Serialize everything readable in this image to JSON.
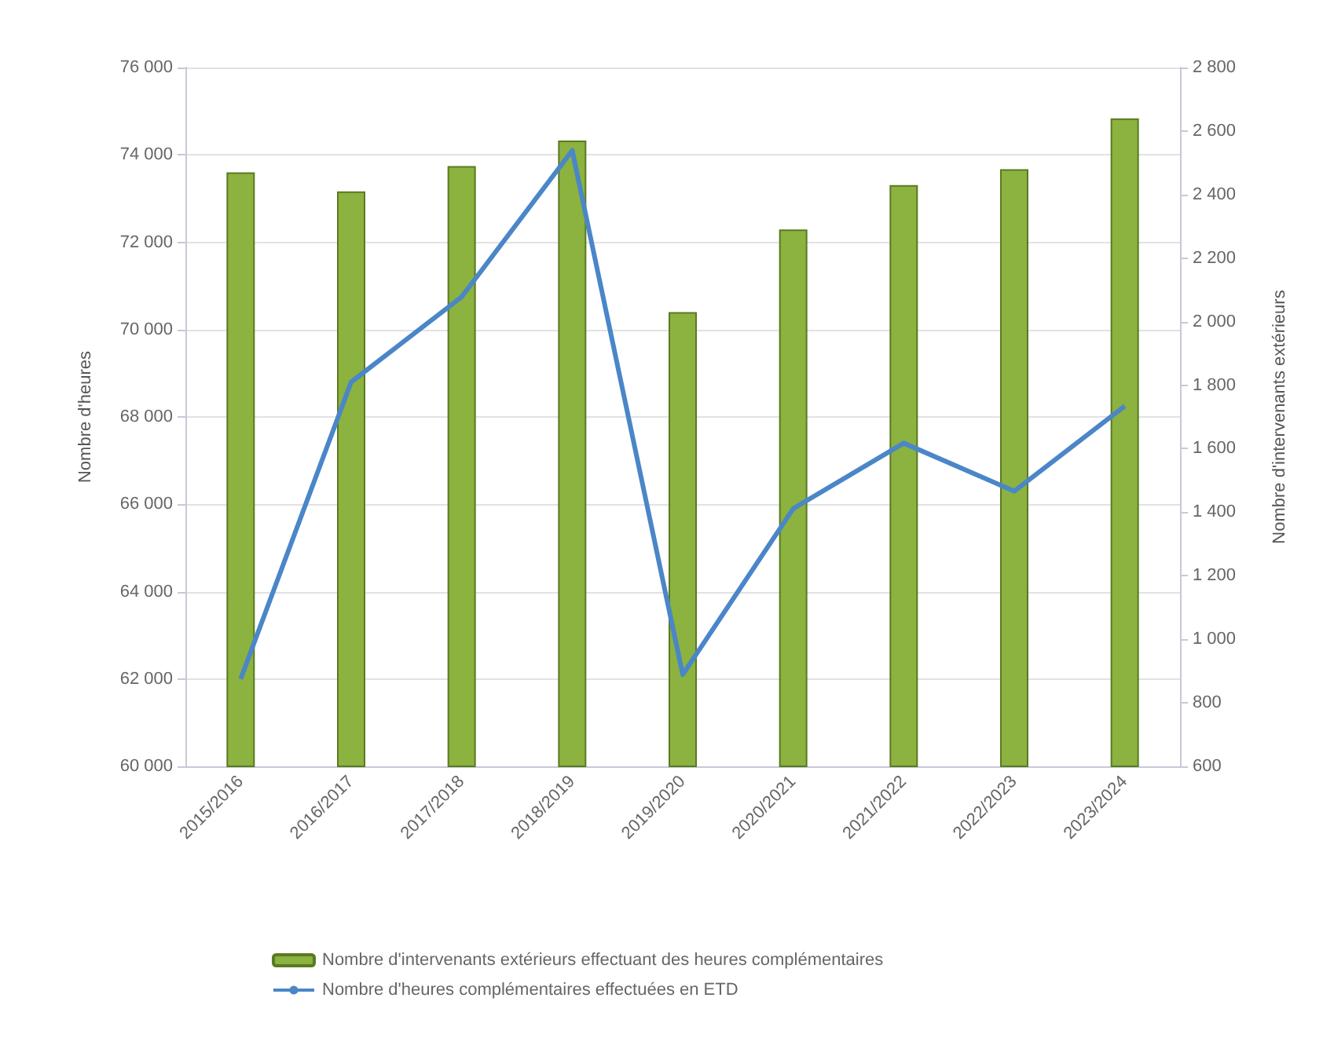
{
  "chart_data": {
    "type": "bar",
    "ylabel": "Nombre d'heures",
    "y2label": "Nombre d'intervenants extérieurs",
    "categories": [
      "2015/2016",
      "2016/2017",
      "2017/2018",
      "2018/2019",
      "2019/2020",
      "2020/2021",
      "2021/2022",
      "2022/2023",
      "2023/2024"
    ],
    "series": [
      {
        "name": "Nombre d'intervenants extérieurs effectuant des heures complémentaires",
        "axis": "y2",
        "color": "#8cb23f",
        "values": [
          2470,
          2410,
          2490,
          2570,
          2030,
          2290,
          2430,
          2480,
          2640
        ]
      },
      {
        "name": "Nombre d'heures complémentaires effectuées en ETD",
        "type": "line",
        "axis": "y",
        "color": "#4a86c8",
        "values": [
          62000,
          68800,
          70750,
          74100,
          62100,
          65900,
          67400,
          66300,
          68250
        ]
      }
    ],
    "ylim": [
      60000,
      76000
    ],
    "yticks": [
      {
        "value": 60000,
        "label": "60 000"
      },
      {
        "value": 62000,
        "label": "62 000"
      },
      {
        "value": 64000,
        "label": "64 000"
      },
      {
        "value": 66000,
        "label": "66 000"
      },
      {
        "value": 68000,
        "label": "68 000"
      },
      {
        "value": 70000,
        "label": "70 000"
      },
      {
        "value": 72000,
        "label": "72 000"
      },
      {
        "value": 74000,
        "label": "74 000"
      },
      {
        "value": 76000,
        "label": "76 000"
      }
    ],
    "y2lim": [
      600,
      2800
    ],
    "y2ticks": [
      600,
      800,
      {
        "value": 1000,
        "label": "1 000"
      },
      {
        "value": 1200,
        "label": "1 200"
      },
      {
        "value": 1400,
        "label": "1 400"
      },
      {
        "value": 1600,
        "label": "1 600"
      },
      {
        "value": 1800,
        "label": "1 800"
      },
      {
        "value": 2000,
        "label": "2 000"
      },
      {
        "value": 2200,
        "label": "2 200"
      },
      {
        "value": 2400,
        "label": "2 400"
      },
      {
        "value": 2600,
        "label": "2 600"
      },
      {
        "value": 2800,
        "label": "2 800"
      }
    ],
    "grid": "y",
    "legend": "bottom",
    "marker": "none",
    "line_style": "solid"
  }
}
